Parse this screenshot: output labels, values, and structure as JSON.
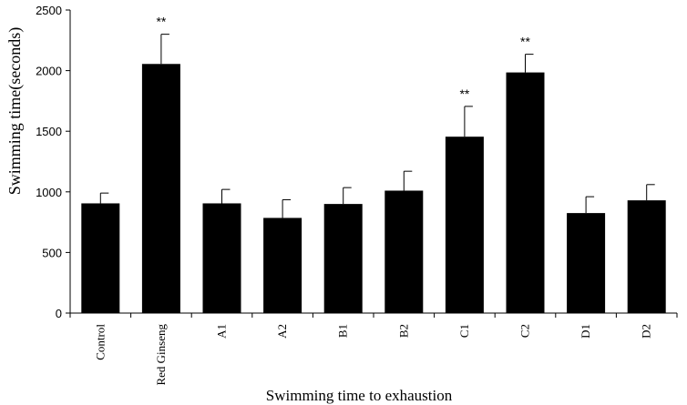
{
  "chart_data": {
    "type": "bar",
    "title": "",
    "xlabel": "Swimming time to exhaustion",
    "ylabel": "Swimming time(seconds)",
    "ylim": [
      0,
      2500
    ],
    "yticks": [
      0,
      500,
      1000,
      1500,
      2000,
      2500
    ],
    "grid": false,
    "bar_color": "#000000",
    "categories": [
      "Control",
      "Red Ginseng",
      "A1",
      "A2",
      "B1",
      "B2",
      "C1",
      "C2",
      "D1",
      "D2"
    ],
    "values": [
      905,
      2055,
      905,
      785,
      900,
      1010,
      1455,
      1985,
      825,
      930
    ],
    "error_upper": [
      85,
      245,
      115,
      150,
      135,
      160,
      250,
      150,
      135,
      130
    ],
    "annotations": [
      "",
      "**",
      "",
      "",
      "",
      "",
      "**",
      "**",
      "",
      ""
    ]
  }
}
